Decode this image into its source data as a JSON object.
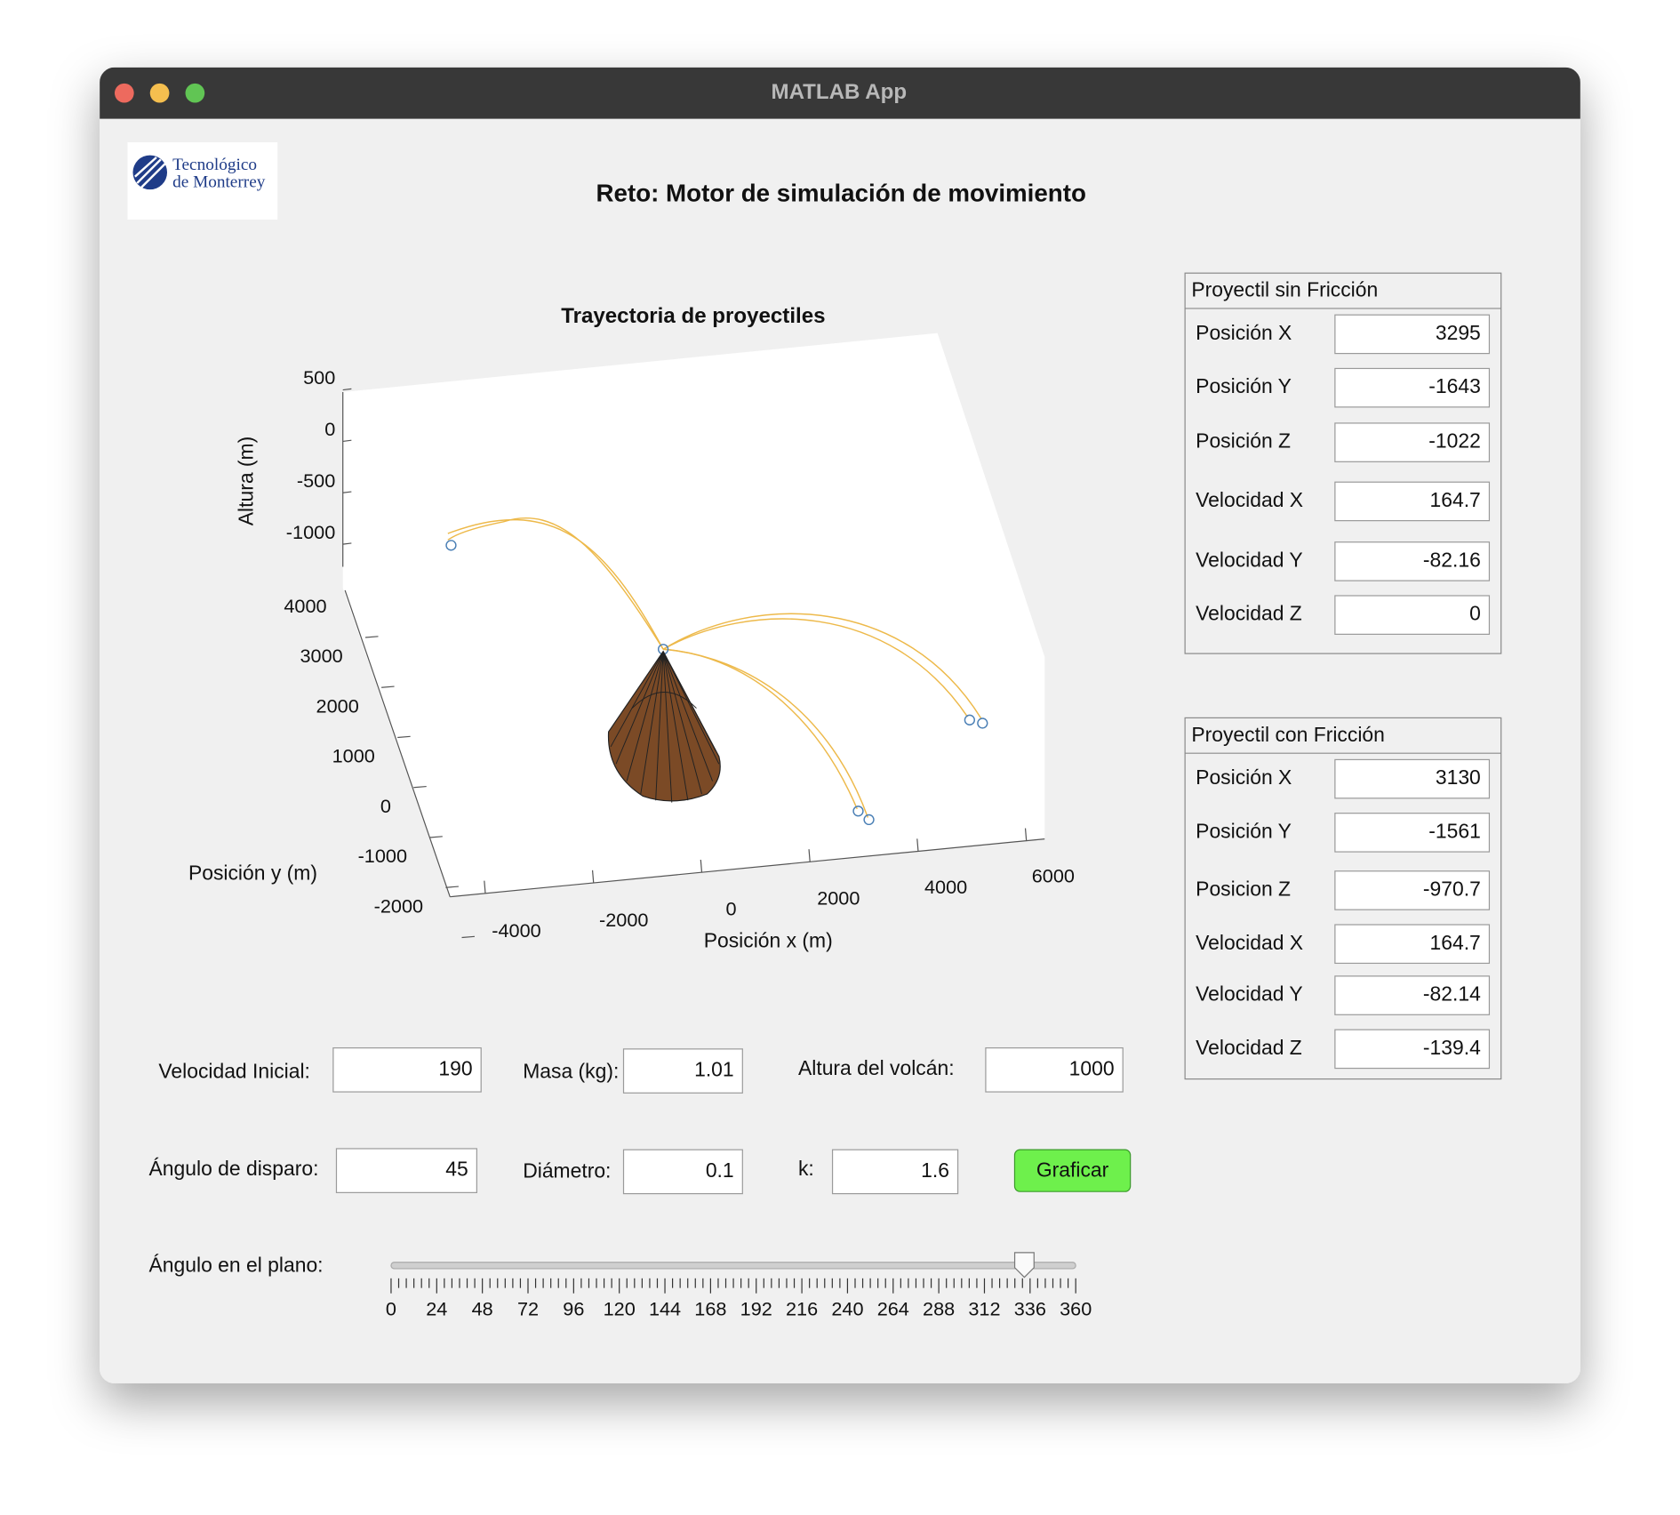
{
  "window": {
    "title": "MATLAB App"
  },
  "logo": {
    "line1": "Tecnológico",
    "line2": "de Monterrey"
  },
  "header": {
    "title": "Reto: Motor de simulación de movimiento"
  },
  "plot": {
    "title": "Trayectoria de proyectiles",
    "zlabel": "Altura (m)",
    "ylabel": "Posición y (m)",
    "xlabel": "Posición x (m)",
    "zticks": [
      500,
      0,
      -500,
      -1000
    ],
    "yticks": [
      4000,
      3000,
      2000,
      1000,
      0,
      -1000,
      -2000
    ],
    "xticks": [
      -4000,
      -2000,
      0,
      2000,
      4000,
      6000
    ]
  },
  "panels": [
    {
      "title": "Proyectil sin Fricción",
      "fields": [
        {
          "label": "Posición X",
          "value": 3295
        },
        {
          "label": "Posición Y",
          "value": -1643
        },
        {
          "label": "Posición Z",
          "value": -1022
        },
        {
          "label": "Velocidad X",
          "value": 164.7
        },
        {
          "label": "Velocidad Y",
          "value": -82.16
        },
        {
          "label": "Velocidad Z",
          "value": 0
        }
      ]
    },
    {
      "title": "Proyectil con Fricción",
      "fields": [
        {
          "label": "Posición X",
          "value": 3130
        },
        {
          "label": "Posición Y",
          "value": -1561
        },
        {
          "label": "Posicion Z",
          "value": -970.7
        },
        {
          "label": "Velocidad X",
          "value": 164.7
        },
        {
          "label": "Velocidad Y",
          "value": -82.14
        },
        {
          "label": "Velocidad Z",
          "value": -139.4
        }
      ]
    }
  ],
  "inputs": [
    {
      "label": "Velocidad Inicial:",
      "value": 190
    },
    {
      "label": "Masa (kg):",
      "value": 1.01
    },
    {
      "label": "Altura del volcán:",
      "value": 1000
    },
    {
      "label": "Ángulo de disparo:",
      "value": 45
    },
    {
      "label": "Diámetro:",
      "value": 0.1
    },
    {
      "label": "k:",
      "value": 1.6
    }
  ],
  "button": {
    "label": "Graficar"
  },
  "slider": {
    "label": "Ángulo en el plano:",
    "value": 333,
    "min": 0,
    "max": 360,
    "ticks": [
      0,
      24,
      48,
      72,
      96,
      120,
      144,
      168,
      192,
      216,
      240,
      264,
      288,
      312,
      336,
      360
    ]
  }
}
